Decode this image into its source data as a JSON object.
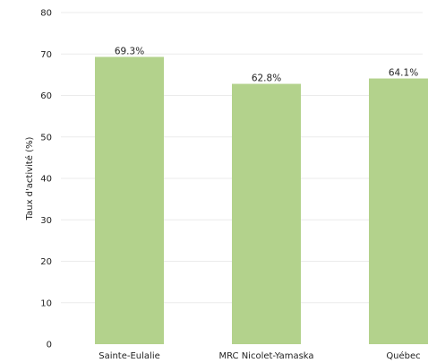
{
  "chart_data": {
    "type": "bar",
    "categories": [
      "Sainte-Eulalie",
      "MRC Nicolet-Yamaska",
      "Québec"
    ],
    "values": [
      69.3,
      62.8,
      64.1
    ],
    "data_labels": [
      "69.3%",
      "62.8%",
      "64.1%"
    ],
    "ylabel": "Taux d'activité (%)",
    "ylim": [
      0,
      80
    ],
    "yticks": [
      0,
      10,
      20,
      30,
      40,
      50,
      60,
      70,
      80
    ],
    "grid": true,
    "bar_color": "#b3d28c"
  }
}
